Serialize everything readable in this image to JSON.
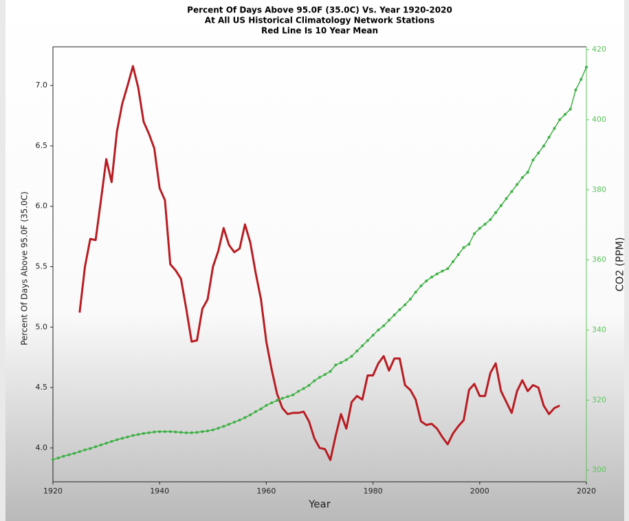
{
  "chart_data": {
    "type": "line",
    "title": [
      "Percent Of Days Above 95.0F (35.0C) Vs. Year 1920-2020",
      "At All US Historical Climatology Network Stations",
      "Red Line Is 10 Year Mean"
    ],
    "xlabel": "Year",
    "ylabel": "Percent Of Days Above 95.0F (35.0C)",
    "y2label": "CO2 (PPM)",
    "xlim": [
      1920,
      2020
    ],
    "xticks": [
      1920,
      1940,
      1960,
      1980,
      2000,
      2020
    ],
    "ylim": [
      3.72,
      7.32
    ],
    "yticks": [
      {
        "value": 4,
        "label": "4.0"
      },
      4.5,
      {
        "value": 5,
        "label": "5.0"
      },
      5.5,
      {
        "value": 6,
        "label": "6.0"
      },
      6.5,
      {
        "value": 7,
        "label": "7.0"
      }
    ],
    "y2lim": [
      296.7,
      420.8
    ],
    "y2ticks": [
      300,
      320,
      340,
      360,
      380,
      400,
      420
    ],
    "y2color": "#5cc35c",
    "series": [
      {
        "color": "#b81c22",
        "markers": false,
        "x": [
          1925,
          1926,
          1927,
          1928,
          1929,
          1930,
          1931,
          1932,
          1933,
          1934,
          1935,
          1936,
          1937,
          1938,
          1939,
          1940,
          1941,
          1942,
          1943,
          1944,
          1945,
          1946,
          1947,
          1948,
          1949,
          1950,
          1951,
          1952,
          1953,
          1954,
          1955,
          1956,
          1957,
          1958,
          1959,
          1960,
          1961,
          1962,
          1963,
          1964,
          1965,
          1966,
          1967,
          1968,
          1969,
          1970,
          1971,
          1972,
          1973,
          1974,
          1975,
          1976,
          1977,
          1978,
          1979,
          1980,
          1981,
          1982,
          1983,
          1984,
          1985,
          1986,
          1987,
          1988,
          1989,
          1990,
          1991,
          1992,
          1993,
          1994,
          1995,
          1996,
          1997,
          1998,
          1999,
          2000,
          2001,
          2002,
          2003,
          2004,
          2005,
          2006,
          2007,
          2008,
          2009,
          2010,
          2011,
          2012,
          2013,
          2014,
          2015
        ],
        "values": [
          5.12,
          5.5,
          5.73,
          5.72,
          6.05,
          6.39,
          6.2,
          6.62,
          6.85,
          7.0,
          7.16,
          6.98,
          6.7,
          6.6,
          6.48,
          6.15,
          6.05,
          5.52,
          5.47,
          5.4,
          5.15,
          4.88,
          4.89,
          5.15,
          5.23,
          5.5,
          5.63,
          5.82,
          5.68,
          5.62,
          5.65,
          5.85,
          5.7,
          5.45,
          5.23,
          4.88,
          4.65,
          4.45,
          4.33,
          4.28,
          4.29,
          4.29,
          4.3,
          4.22,
          4.08,
          4.0,
          3.99,
          3.9,
          4.1,
          4.28,
          4.16,
          4.38,
          4.43,
          4.4,
          4.6,
          4.6,
          4.7,
          4.76,
          4.64,
          4.74,
          4.74,
          4.52,
          4.48,
          4.4,
          4.22,
          4.19,
          4.2,
          4.16,
          4.09,
          4.03,
          4.12,
          4.18,
          4.23,
          4.48,
          4.53,
          4.43,
          4.43,
          4.62,
          4.7,
          4.47,
          4.38,
          4.29,
          4.47,
          4.56,
          4.47,
          4.52,
          4.5,
          4.35,
          4.28,
          4.33,
          4.35
        ]
      },
      {
        "color": "#3cb043",
        "axis": "y2",
        "markers": true,
        "x": [
          1920,
          1921,
          1922,
          1923,
          1924,
          1925,
          1926,
          1927,
          1928,
          1929,
          1930,
          1931,
          1932,
          1933,
          1934,
          1935,
          1936,
          1937,
          1938,
          1939,
          1940,
          1941,
          1942,
          1943,
          1944,
          1945,
          1946,
          1947,
          1948,
          1949,
          1950,
          1951,
          1952,
          1953,
          1954,
          1955,
          1956,
          1957,
          1958,
          1959,
          1960,
          1961,
          1962,
          1963,
          1964,
          1965,
          1966,
          1967,
          1968,
          1969,
          1970,
          1971,
          1972,
          1973,
          1974,
          1975,
          1976,
          1977,
          1978,
          1979,
          1980,
          1981,
          1982,
          1983,
          1984,
          1985,
          1986,
          1987,
          1988,
          1989,
          1990,
          1991,
          1992,
          1993,
          1994,
          1995,
          1996,
          1997,
          1998,
          1999,
          2000,
          2001,
          2002,
          2003,
          2004,
          2005,
          2006,
          2007,
          2008,
          2009,
          2010,
          2011,
          2012,
          2013,
          2014,
          2015,
          2016,
          2017,
          2018,
          2019,
          2020
        ],
        "values": [
          303.0,
          303.5,
          304.0,
          304.4,
          304.8,
          305.3,
          305.8,
          306.2,
          306.7,
          307.2,
          307.7,
          308.2,
          308.7,
          309.1,
          309.5,
          309.9,
          310.2,
          310.5,
          310.7,
          310.9,
          311.0,
          311.0,
          311.0,
          310.9,
          310.8,
          310.7,
          310.7,
          310.8,
          311.0,
          311.2,
          311.5,
          312.0,
          312.5,
          313.1,
          313.7,
          314.3,
          315.0,
          315.8,
          316.7,
          317.5,
          318.5,
          319.2,
          319.9,
          320.5,
          321.0,
          321.5,
          322.5,
          323.3,
          324.2,
          325.5,
          326.5,
          327.3,
          328.2,
          330.0,
          330.7,
          331.5,
          332.5,
          334.0,
          335.5,
          337.0,
          338.5,
          340.0,
          341.2,
          342.8,
          344.3,
          345.8,
          347.2,
          348.8,
          350.8,
          352.6,
          354.0,
          355.1,
          356.0,
          356.8,
          357.5,
          359.5,
          361.5,
          363.5,
          364.5,
          367.5,
          369.0,
          370.2,
          371.5,
          373.5,
          375.5,
          377.5,
          379.5,
          381.5,
          383.5,
          385.0,
          388.5,
          390.5,
          392.5,
          395.0,
          397.5,
          400.0,
          401.5,
          403.0,
          408.5,
          411.5,
          415.0
        ]
      }
    ]
  }
}
